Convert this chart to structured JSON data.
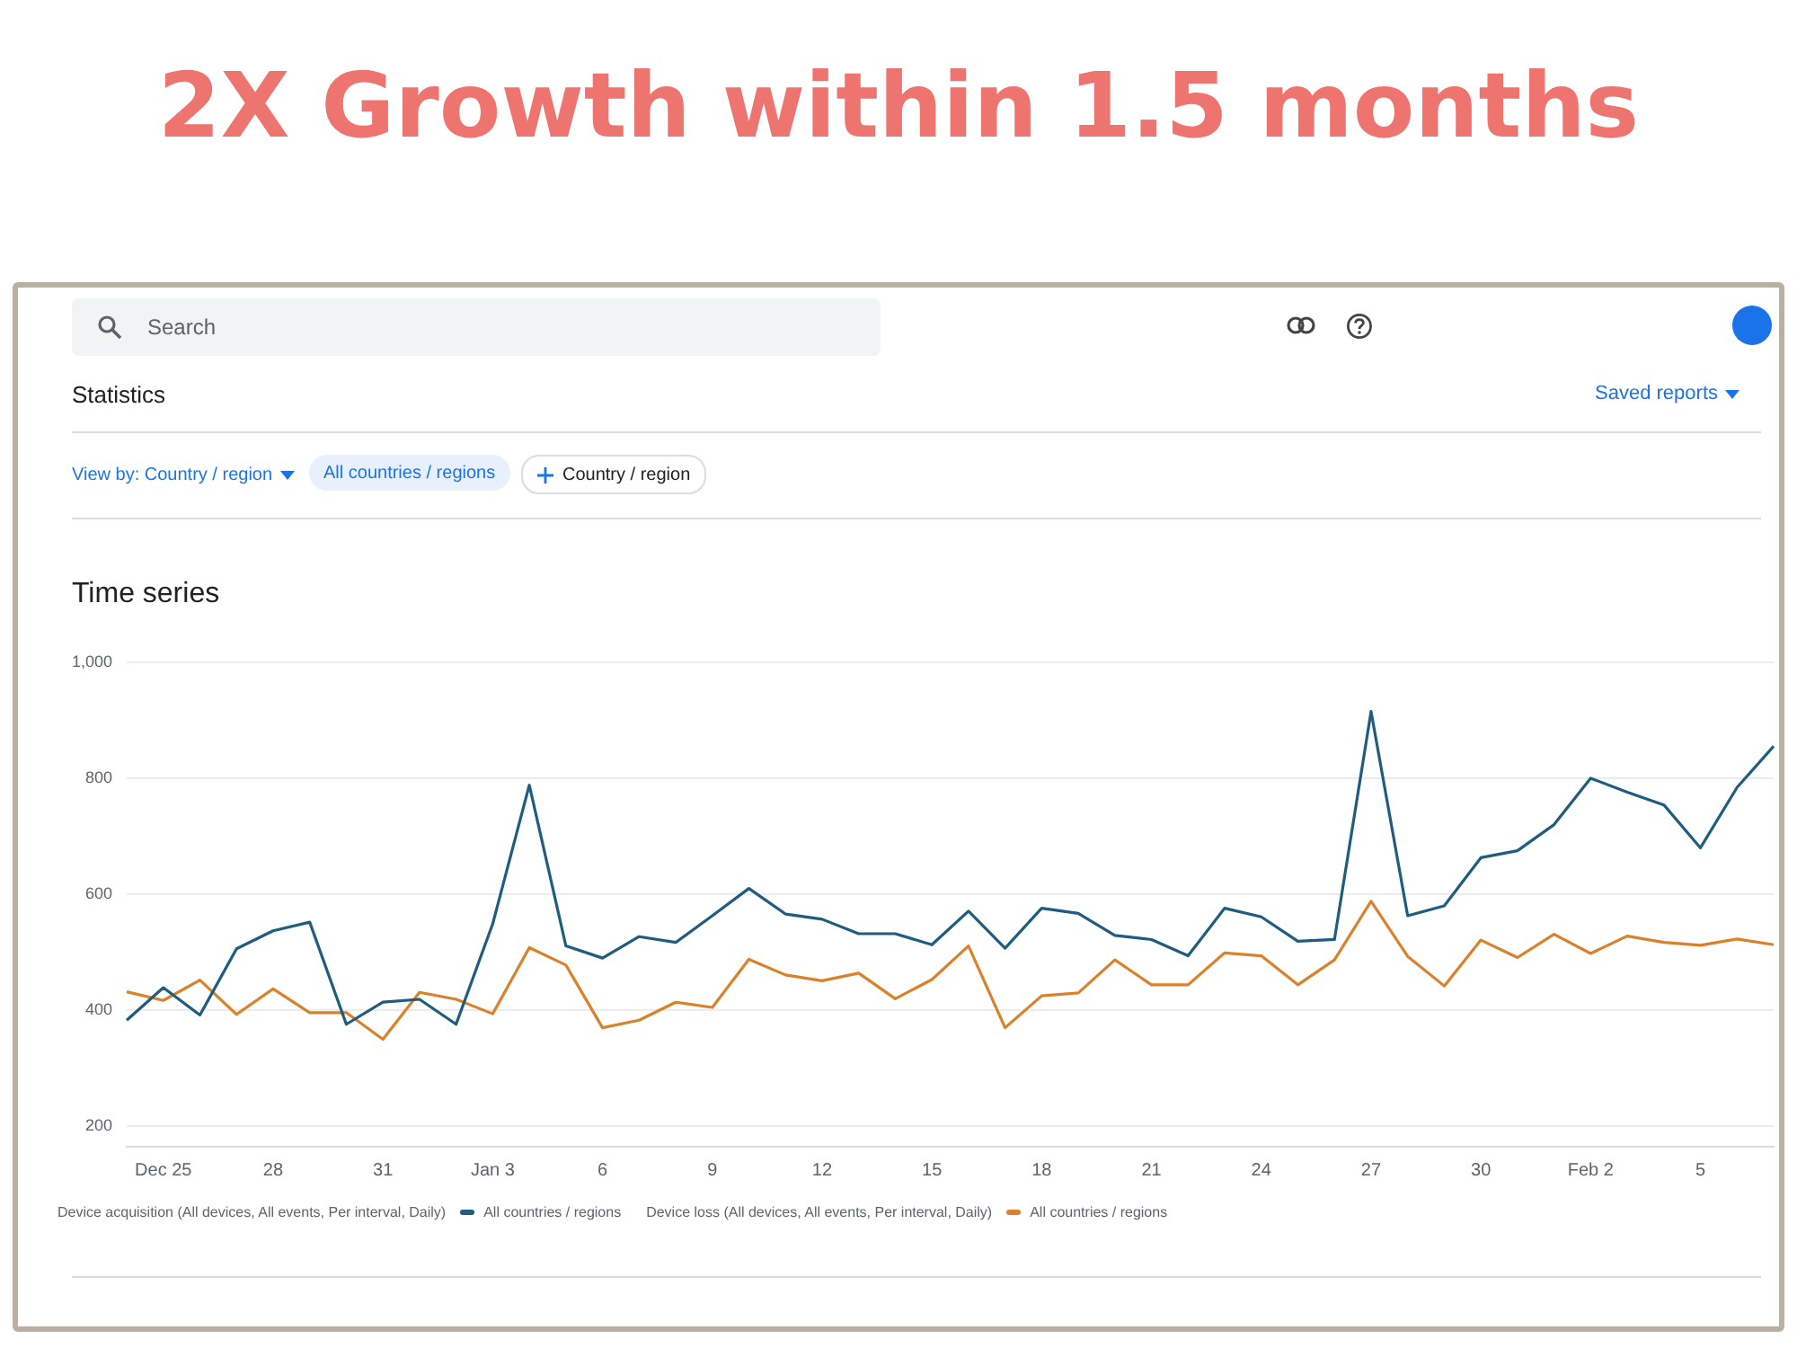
{
  "chart_data": {
    "type": "line",
    "title": "2X Growth within 1.5 months",
    "subtitle": "Time series",
    "categories": [
      null,
      "Dec 25",
      null,
      null,
      "28",
      null,
      null,
      "31",
      null,
      null,
      "Jan 3",
      null,
      null,
      "6",
      null,
      null,
      "9",
      null,
      null,
      "12",
      null,
      null,
      "15",
      null,
      null,
      "18",
      null,
      null,
      "21",
      null,
      null,
      "24",
      null,
      null,
      "27",
      null,
      null,
      "30",
      null,
      null,
      "Feb 2",
      null,
      null,
      "5",
      null,
      null
    ],
    "series": [
      {
        "name": "All countries / regions",
        "color": "#1f5c7f",
        "values": [
          383,
          439,
          392,
          506,
          537,
          552,
          376,
          414,
          419,
          376,
          549,
          788,
          511,
          490,
          527,
          517,
          563,
          610,
          566,
          557,
          532,
          532,
          513,
          571,
          507,
          576,
          567,
          529,
          522,
          494,
          576,
          561,
          519,
          522,
          915,
          563,
          580,
          663,
          675,
          720,
          800,
          776,
          754,
          680,
          784,
          855
        ]
      },
      {
        "name": "All countries / regions",
        "color": "#d9822b",
        "values": [
          432,
          417,
          452,
          393,
          437,
          396,
          396,
          350,
          431,
          419,
          394,
          508,
          478,
          370,
          383,
          414,
          405,
          488,
          461,
          451,
          464,
          420,
          453,
          511,
          370,
          425,
          430,
          487,
          444,
          444,
          499,
          494,
          444,
          487,
          588,
          493,
          442,
          521,
          491,
          531,
          498,
          528,
          517,
          512,
          523,
          513
        ]
      }
    ],
    "ylim": [
      165,
      1000
    ],
    "yticks": [
      200,
      400,
      600,
      800,
      {
        "value": 1000,
        "label": "1,000"
      }
    ],
    "grid": "y",
    "legend": "bottom",
    "line_style": "solid",
    "marker": "none",
    "annotations": [
      "Search",
      "Statistics",
      "Saved reports",
      "View by: Country / region",
      "All countries / regions",
      "Country / region",
      "Device acquisition (All devices, All events, Per interval, Daily)",
      "Device loss (All devices, All events, Per interval, Daily)"
    ]
  }
}
